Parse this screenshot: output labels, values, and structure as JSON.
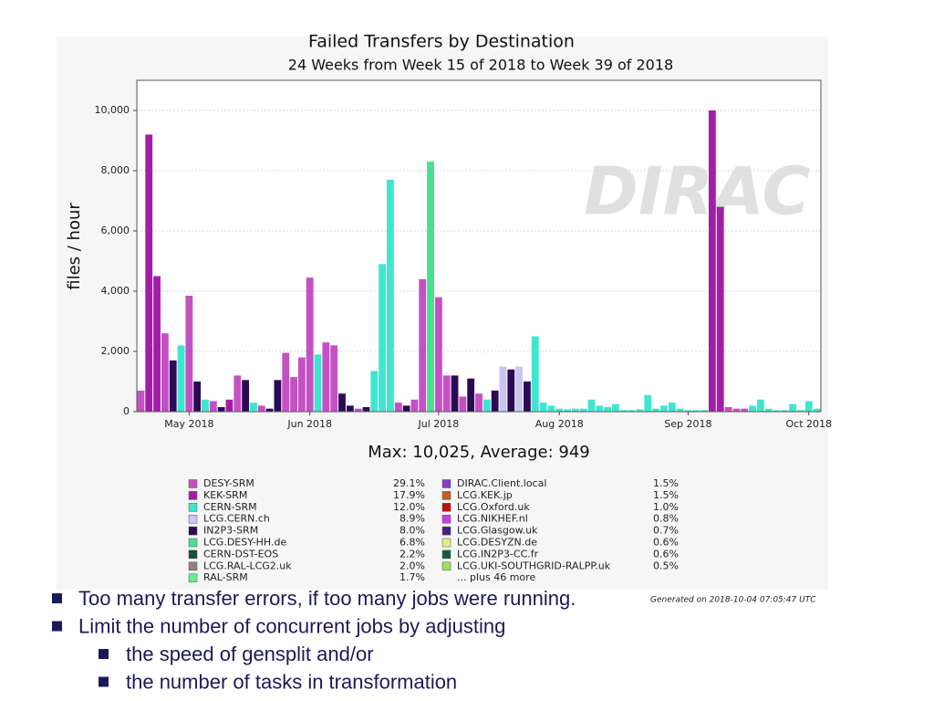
{
  "chart_data": {
    "type": "bar",
    "title": "Failed Transfers by Destination",
    "subtitle": "24 Weeks from Week 15 of 2018 to Week 39 of 2018",
    "y_label": "files / hour",
    "stats": "Max: 10,025, Average: 949",
    "watermark": "DIRAC",
    "generated": "Generated on 2018-10-04 07:05:47 UTC",
    "more": "... plus 46 more",
    "ylim": [
      0,
      11000
    ],
    "yticks": [
      0,
      {
        "value": 2000,
        "label": "2,000"
      },
      {
        "value": 4000,
        "label": "4,000"
      },
      {
        "value": 6000,
        "label": "6,000"
      },
      {
        "value": 8000,
        "label": "8,000"
      },
      {
        "value": 10000,
        "label": "10,000"
      }
    ],
    "grid": true,
    "categories": [
      null,
      null,
      null,
      null,
      null,
      null,
      "May 2018",
      null,
      null,
      null,
      null,
      null,
      null,
      null,
      null,
      null,
      null,
      null,
      null,
      null,
      null,
      "Jun 2018",
      null,
      null,
      null,
      null,
      null,
      null,
      null,
      null,
      null,
      null,
      null,
      null,
      null,
      null,
      null,
      "Jul 2018",
      null,
      null,
      null,
      null,
      null,
      null,
      null,
      null,
      null,
      null,
      null,
      null,
      null,
      null,
      "Aug 2018",
      null,
      null,
      null,
      null,
      null,
      null,
      null,
      null,
      null,
      null,
      null,
      null,
      null,
      null,
      null,
      "Sep 2018",
      null,
      null,
      null,
      null,
      null,
      null,
      null,
      null,
      null,
      null,
      null,
      null,
      null,
      null,
      "Oct 2018",
      null
    ],
    "values": [
      700,
      9200,
      4500,
      2600,
      1700,
      2200,
      3850,
      1000,
      400,
      350,
      150,
      400,
      1200,
      1050,
      300,
      200,
      100,
      1050,
      1950,
      1150,
      1800,
      4450,
      1900,
      2300,
      2200,
      600,
      200,
      100,
      150,
      1350,
      4900,
      7700,
      300,
      200,
      400,
      4400,
      8300,
      3800,
      1200,
      1200,
      500,
      1100,
      600,
      400,
      700,
      1500,
      1400,
      1500,
      1000,
      2500,
      300,
      200,
      100,
      80,
      100,
      100,
      400,
      200,
      150,
      250,
      50,
      50,
      80,
      550,
      100,
      200,
      300,
      100,
      50,
      50,
      50,
      10000,
      6800,
      150,
      100,
      100,
      200,
      400,
      100,
      50,
      50,
      250,
      50,
      350,
      100
    ],
    "colors": [
      "#c450c4",
      "#a21ea8",
      "#a21ea8",
      "#c450c4",
      "#2b0a55",
      "#3fe6cf",
      "#c450c4",
      "#2b0a55",
      "#3fe6cf",
      "#c450c4",
      "#2b0a55",
      "#a21ea8",
      "#c450c4",
      "#2b0a55",
      "#3fe6cf",
      "#c450c4",
      "#2b0a55",
      "#2b0a55",
      "#c450c4",
      "#c450c4",
      "#c450c4",
      "#c450c4",
      "#3fe6cf",
      "#c450c4",
      "#c450c4",
      "#2b0a55",
      "#2b0a55",
      "#c450c4",
      "#2b0a55",
      "#3fe6cf",
      "#3fe6cf",
      "#3fe6cf",
      "#c450c4",
      "#2b0a55",
      "#c450c4",
      "#c450c4",
      "#46e08e",
      "#c450c4",
      "#c450c4",
      "#2b0a55",
      "#c450c4",
      "#2b0a55",
      "#c450c4",
      "#3fe6cf",
      "#2b0a55",
      "#c9c6f2",
      "#2b0a55",
      "#c9c6f2",
      "#2b0a55",
      "#3fe6cf",
      "#3fe6cf",
      "#3fe6cf",
      "#3fe6cf",
      "#3fe6cf",
      "#3fe6cf",
      "#3fe6cf",
      "#3fe6cf",
      "#3fe6cf",
      "#3fe6cf",
      "#3fe6cf",
      "#3fe6cf",
      "#3fe6cf",
      "#3fe6cf",
      "#3fe6cf",
      "#3fe6cf",
      "#3fe6cf",
      "#3fe6cf",
      "#3fe6cf",
      "#3fe6cf",
      "#3fe6cf",
      "#3fe6cf",
      "#a21ea8",
      "#a21ea8",
      "#c450c4",
      "#c450c4",
      "#c450c4",
      "#3fe6cf",
      "#3fe6cf",
      "#3fe6cf",
      "#3fe6cf",
      "#3fe6cf",
      "#3fe6cf",
      "#3fe6cf",
      "#3fe6cf",
      "#3fe6cf"
    ],
    "legend": [
      {
        "name": "DESY-SRM",
        "color": "#c450c4",
        "share": "29.1%"
      },
      {
        "name": "KEK-SRM",
        "color": "#a21ea8",
        "share": "17.9%"
      },
      {
        "name": "CERN-SRM",
        "color": "#3fe6cf",
        "share": "12.0%"
      },
      {
        "name": "LCG.CERN.ch",
        "color": "#c9c6f2",
        "share": "8.9%"
      },
      {
        "name": "IN2P3-SRM",
        "color": "#2b0a55",
        "share": "8.0%"
      },
      {
        "name": "LCG.DESY-HH.de",
        "color": "#46e08e",
        "share": "6.8%"
      },
      {
        "name": "CERN-DST-EOS",
        "color": "#17503a",
        "share": "2.2%"
      },
      {
        "name": "LCG.RAL-LCG2.uk",
        "color": "#908080",
        "share": "2.0%"
      },
      {
        "name": "RAL-SRM",
        "color": "#62f092",
        "share": "1.7%"
      },
      {
        "name": "DIRAC.Client.local",
        "color": "#8040c0",
        "share": "1.5%"
      },
      {
        "name": "LCG.KEK.jp",
        "color": "#c06020",
        "share": "1.5%"
      },
      {
        "name": "LCG.Oxford.uk",
        "color": "#c01010",
        "share": "1.0%"
      },
      {
        "name": "LCG.NIKHEF.nl",
        "color": "#c040e0",
        "share": "0.8%"
      },
      {
        "name": "LCG.Glasgow.uk",
        "color": "#402080",
        "share": "0.7%"
      },
      {
        "name": "LCG.DESYZN.de",
        "color": "#e0f080",
        "share": "0.6%"
      },
      {
        "name": "LCG.IN2P3-CC.fr",
        "color": "#106040",
        "share": "0.6%"
      },
      {
        "name": "LCG.UKI-SOUTHGRID-RALPP.uk",
        "color": "#a0e060",
        "share": "0.5%"
      }
    ]
  },
  "bullets": [
    {
      "text": "Too many transfer errors, if too many jobs were running."
    },
    {
      "text": "Limit the number of concurrent jobs by adjusting",
      "sub": [
        "the speed of gensplit and/or",
        "the number of tasks in transformation"
      ]
    }
  ]
}
